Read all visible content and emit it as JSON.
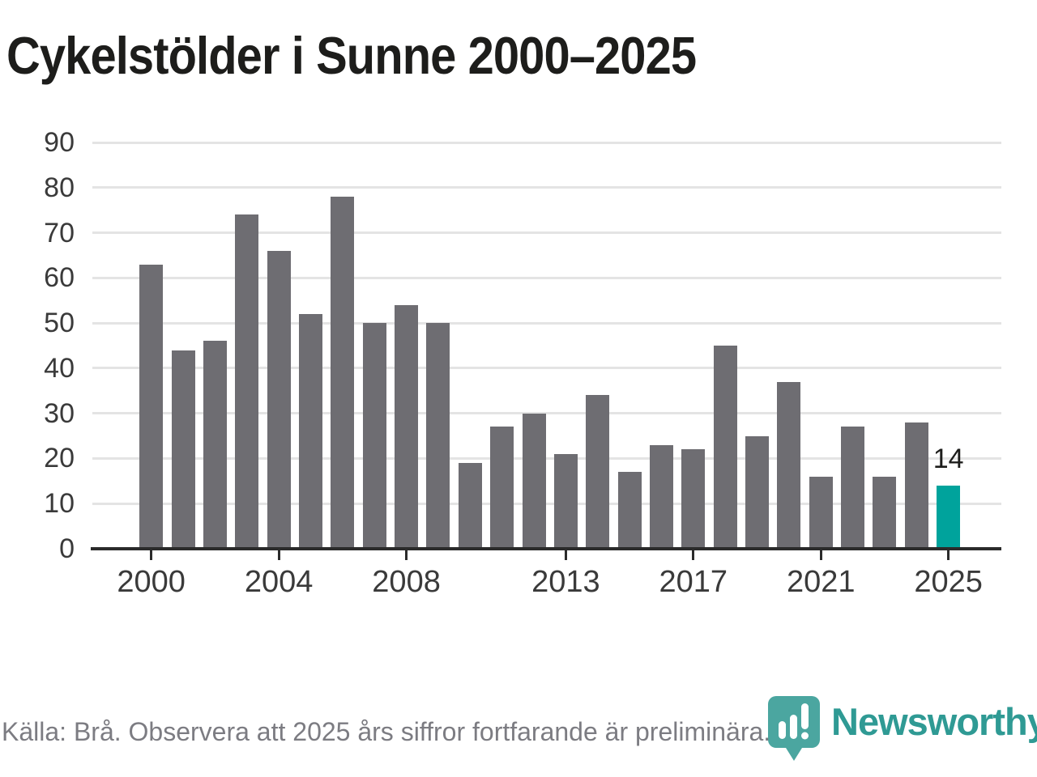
{
  "title": "Cykelstölder i Sunne 2000–2025",
  "source_note": "Källa: Brå. Observera att 2025 års siffror fortfarande är preliminära.",
  "logo": {
    "wordmark": "Newsworthy",
    "icon": "newsworthy-bubble-barchart-icon"
  },
  "colors": {
    "bar": "#6e6d72",
    "highlight": "#00a39c",
    "gridline": "#e4e4e4",
    "axis": "#2b2b2b",
    "title_text": "#1d1d1b",
    "tick_label": "#3a3a3a",
    "source_text": "#7c7c82",
    "logo_teal": "#2f9a94",
    "logo_icon_teal": "#4ba6a0"
  },
  "chart_data": {
    "type": "bar",
    "title": "Cykelstölder i Sunne 2000–2025",
    "xlabel": "",
    "ylabel": "",
    "x": [
      2000,
      2001,
      2002,
      2003,
      2004,
      2005,
      2006,
      2007,
      2008,
      2009,
      2010,
      2011,
      2012,
      2013,
      2014,
      2015,
      2016,
      2017,
      2018,
      2019,
      2020,
      2021,
      2022,
      2023,
      2024,
      2025
    ],
    "values": [
      63,
      44,
      46,
      74,
      66,
      52,
      78,
      50,
      54,
      50,
      19,
      27,
      30,
      21,
      34,
      17,
      23,
      22,
      45,
      25,
      37,
      16,
      27,
      16,
      28,
      14
    ],
    "highlight_index": 25,
    "highlight_label": "14",
    "ylim": [
      0,
      90
    ],
    "ytick_interval": 10,
    "xticks": [
      2000,
      2004,
      2008,
      2013,
      2017,
      2021,
      2025
    ],
    "grid": true,
    "legend": "none",
    "bar_color": "#6e6d72",
    "highlight_color": "#00a39c"
  }
}
